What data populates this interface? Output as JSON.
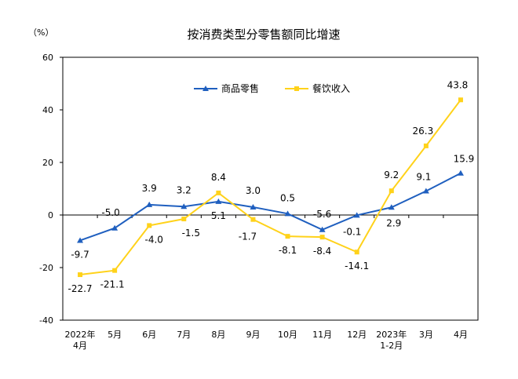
{
  "chart_data": {
    "type": "line",
    "title": "按消费类型分零售额同比增速",
    "unit_label": "（%）",
    "categories": [
      [
        "2022年",
        "4月"
      ],
      [
        "5月"
      ],
      [
        "6月"
      ],
      [
        "7月"
      ],
      [
        "8月"
      ],
      [
        "9月"
      ],
      [
        "10月"
      ],
      [
        "11月"
      ],
      [
        "12月"
      ],
      [
        "2023年",
        "1-2月"
      ],
      [
        "3月"
      ],
      [
        "4月"
      ]
    ],
    "ylim": [
      -40,
      60
    ],
    "yticks": [
      "60",
      "40",
      "20",
      "0",
      "-20",
      "-40"
    ],
    "ytick_values": [
      60,
      40,
      20,
      0,
      -20,
      -40
    ],
    "grid": false,
    "legend_placement": "top-center",
    "series": [
      {
        "name": "商品零售",
        "color": "#1f5fbf",
        "marker": "triangle",
        "values": [
          -9.7,
          -5.0,
          3.9,
          3.2,
          5.1,
          3.0,
          0.5,
          -5.6,
          -0.1,
          2.9,
          9.1,
          15.9
        ],
        "labels": [
          "-9.7",
          "-5.0",
          "3.9",
          "3.2",
          "5.1",
          "3.0",
          "0.5",
          "-5.6",
          "-0.1",
          "2.9",
          "9.1",
          "15.9"
        ]
      },
      {
        "name": "餐饮收入",
        "color": "#ffd21a",
        "marker": "square",
        "values": [
          -22.7,
          -21.1,
          -4.0,
          -1.5,
          8.4,
          -1.7,
          -8.1,
          -8.4,
          -14.1,
          9.2,
          26.3,
          43.8
        ],
        "labels": [
          "-22.7",
          "-21.1",
          "-4.0",
          "-1.5",
          "8.4",
          "-1.7",
          "-8.1",
          "-8.4",
          "-14.1",
          "9.2",
          "26.3",
          "43.8"
        ]
      }
    ]
  }
}
